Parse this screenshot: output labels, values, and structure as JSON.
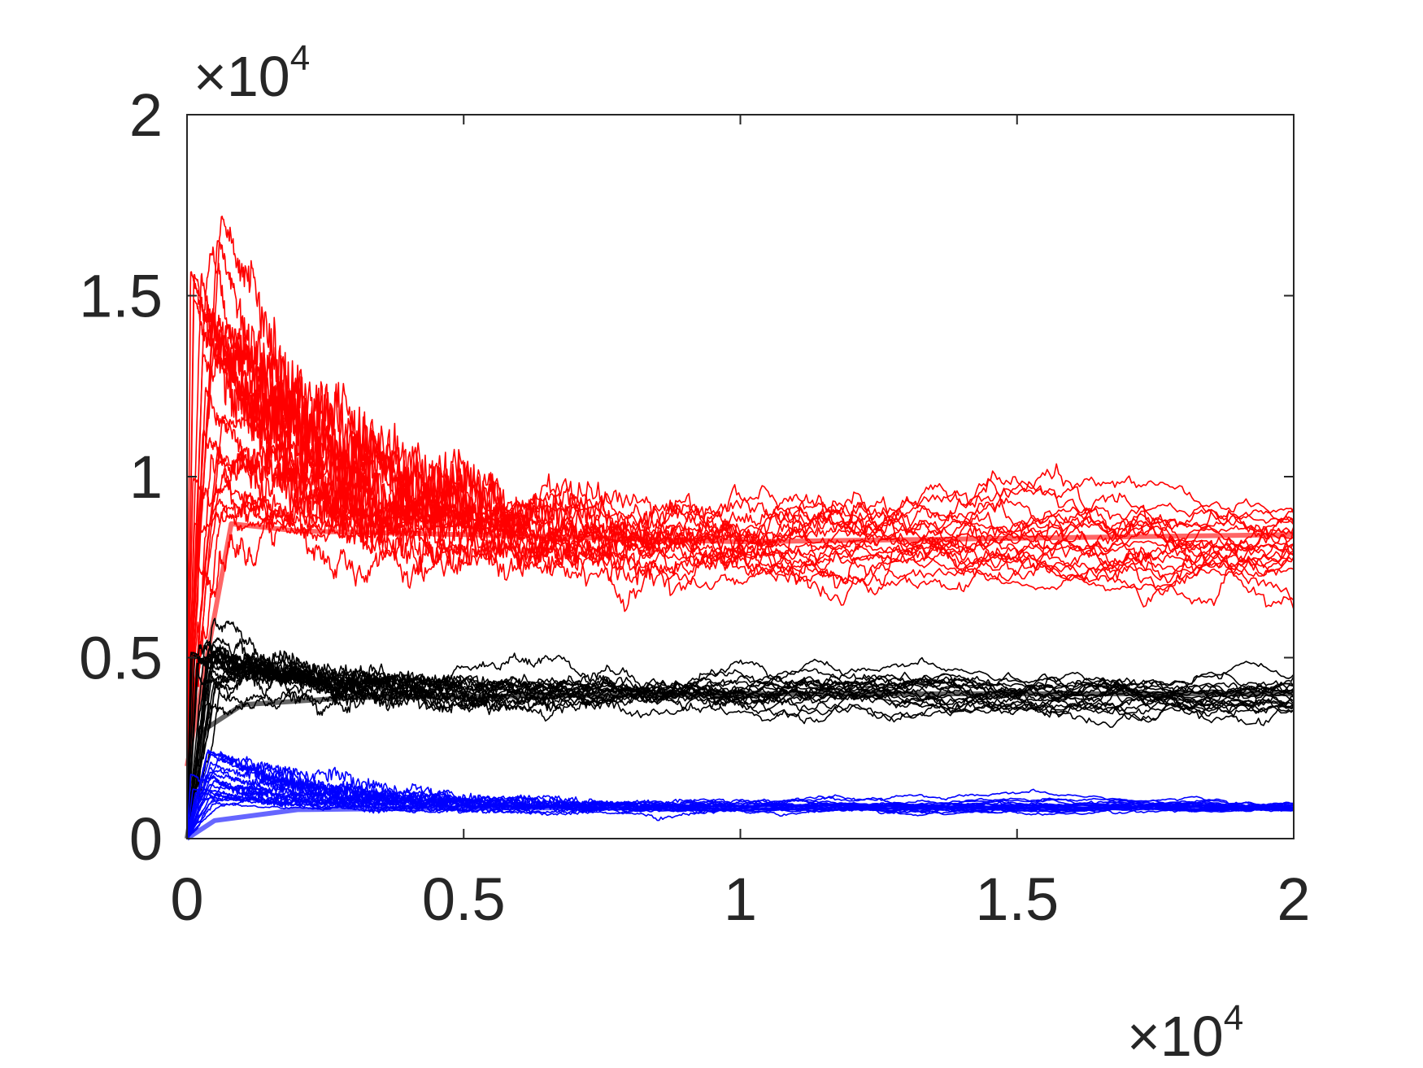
{
  "chart_data": {
    "type": "line",
    "title": "",
    "xlabel": "",
    "ylabel": "",
    "xlim": [
      0,
      20000
    ],
    "ylim": [
      0,
      20000
    ],
    "x_ticks": [
      0,
      5000,
      10000,
      15000,
      20000
    ],
    "x_tick_labels": [
      "0",
      "0.5",
      "1",
      "1.5",
      "2"
    ],
    "y_ticks": [
      0,
      5000,
      10000,
      15000,
      20000
    ],
    "y_tick_labels": [
      "0",
      "0.5",
      "1",
      "1.5",
      "2"
    ],
    "x_exponent_label": {
      "base": "×10",
      "power": "4"
    },
    "y_exponent_label": {
      "base": "×10",
      "power": "4"
    },
    "grid": false,
    "legend": "none",
    "box": true,
    "series_groups": [
      {
        "color": "#ff0000",
        "count": 20,
        "start_value": 2000,
        "early_peak_max": 17200,
        "settle_value": 8400,
        "end_range": [
          7600,
          9100
        ],
        "mean_curve": {
          "x": [
            0,
            800,
            2000,
            5000,
            10000,
            15000,
            20000
          ],
          "y": [
            2000,
            8700,
            8500,
            8400,
            8200,
            8300,
            8400
          ]
        }
      },
      {
        "color": "#000000",
        "count": 20,
        "start_value": 0,
        "early_peak_max": 5600,
        "settle_value": 4000,
        "end_range": [
          3800,
          4100
        ],
        "mean_curve": {
          "x": [
            0,
            300,
            1000,
            3000,
            10000,
            20000
          ],
          "y": [
            0,
            3000,
            3700,
            3900,
            4000,
            4000
          ]
        }
      },
      {
        "color": "#0000ff",
        "count": 20,
        "start_value": 0,
        "early_peak_max": 2500,
        "settle_value": 850,
        "end_range": [
          800,
          900
        ],
        "mean_curve": {
          "x": [
            0,
            500,
            2000,
            5000,
            20000
          ],
          "y": [
            0,
            500,
            800,
            850,
            850
          ]
        }
      }
    ]
  }
}
